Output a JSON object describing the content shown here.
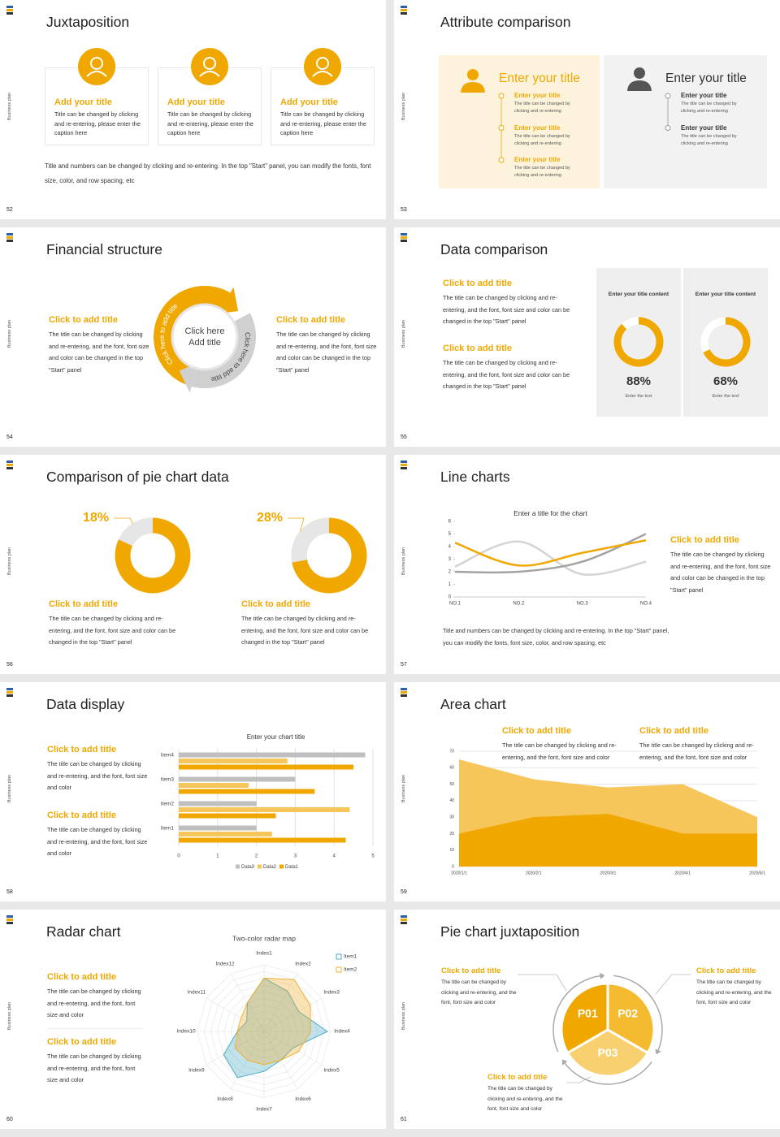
{
  "slides": [
    {
      "number": "52",
      "side_label": "Business plan",
      "title": "Juxtaposition",
      "cards": [
        {
          "title": "Add your title",
          "text": "Title can be changed by clicking and re-entering, please enter the caption here"
        },
        {
          "title": "Add your title",
          "text": "Title can be changed by clicking and re-entering, please enter the caption here"
        },
        {
          "title": "Add your title",
          "text": "Title can be changed by clicking and re-entering, please enter the caption here"
        }
      ],
      "caption": "Title and numbers can be changed by clicking and re-entering. In the top \"Start\" panel, you can modify the fonts, font size, color, and row spacing, etc"
    },
    {
      "number": "53",
      "side_label": "Business plan",
      "title": "Attribute comparison",
      "left": {
        "title": "Enter your title",
        "items": [
          {
            "title": "Enter your title",
            "text": "The title can be changed by clicking and re-entering"
          },
          {
            "title": "Enter your title",
            "text": "The title can be changed by clicking and re-entering"
          },
          {
            "title": "Enter your title",
            "text": "The title can be changed by clicking and re-entering"
          }
        ]
      },
      "right": {
        "title": "Enter your title",
        "items": [
          {
            "title": "Enter your title",
            "text": "The title can be changed by clicking and re-entering"
          },
          {
            "title": "Enter your title",
            "text": "The title can be changed by clicking and re-entering"
          }
        ]
      }
    },
    {
      "number": "54",
      "side_label": "Business plan",
      "title": "Financial structure",
      "blocks": [
        {
          "title": "Click to add title",
          "text": "The title can be changed by clicking and re-entering, and the font, font size and color can be changed in the top \"Start\" panel"
        },
        {
          "title": "Click to add title",
          "text": "The title can be changed by clicking and re-entering, and the font, font size and color can be changed in the top \"Start\" panel"
        }
      ],
      "center": [
        "Click here",
        "Add title"
      ],
      "arc_labels": [
        "Click here to add title",
        "Click here to add title"
      ]
    },
    {
      "number": "55",
      "side_label": "Business plan",
      "title": "Data comparison",
      "blocks": [
        {
          "title": "Click to add title",
          "text": "The title can be changed by clicking and re-entering, and the font, font size and color can be changed in the top \"Start\" panel"
        },
        {
          "title": "Click to add title",
          "text": "The title can be changed by clicking and re-entering, and the font, font size and color can be changed in the top \"Start\" panel"
        }
      ],
      "panels": [
        {
          "heading": "Enter your title content",
          "value": 88,
          "value_label": "88%",
          "caption": "Enter the text"
        },
        {
          "heading": "Enter your title content",
          "value": 68,
          "value_label": "68%",
          "caption": "Enter the text"
        }
      ]
    },
    {
      "number": "56",
      "side_label": "Business plan",
      "title": "Comparison of pie chart data",
      "donuts": [
        {
          "value": 18,
          "value_label": "18%"
        },
        {
          "value": 28,
          "value_label": "28%"
        }
      ],
      "blocks": [
        {
          "title": "Click to add title",
          "text": "The title can be changed by clicking and re-entering, and the font, font size and color can be changed in the top \"Start\" panel"
        },
        {
          "title": "Click to add title",
          "text": "The title can be changed by clicking and re-entering, and the font, font size and color can be changed in the top \"Start\" panel"
        }
      ]
    },
    {
      "number": "57",
      "side_label": "Business plan",
      "title": "Line charts",
      "chart": {
        "type": "line",
        "title": "Enter a title for the chart",
        "categories": [
          "NO.1",
          "NO.2",
          "NO.3",
          "NO.4"
        ],
        "ylim": [
          0,
          6
        ],
        "yticks": [
          0,
          1,
          2,
          3,
          4,
          5,
          6
        ],
        "series": [
          {
            "color": "#d4d4d4",
            "values": [
              2.4,
              4.4,
              1.8,
              2.8
            ]
          },
          {
            "color": "#a3a3a3",
            "values": [
              2,
              2,
              2.8,
              5
            ]
          },
          {
            "color": "#f0a800",
            "values": [
              4.3,
              2.5,
              3.5,
              4.5
            ]
          }
        ]
      },
      "block": {
        "title": "Click to add title",
        "text": "The title can be changed by clicking and re-entering, and the font, font size and color can be changed in the top \"Start\" panel"
      },
      "caption": "Title and numbers can be changed by clicking and re-entering. In the top \"Start\" panel, you can modify the fonts, font size, color, and row spacing, etc"
    },
    {
      "number": "58",
      "side_label": "Business plan",
      "title": "Data display",
      "chart": {
        "type": "bar",
        "orientation": "horizontal",
        "title": "Enter your chart title",
        "categories": [
          "Item1",
          "Item2",
          "Item3",
          "Item4"
        ],
        "xlim": [
          0,
          5
        ],
        "xticks": [
          0,
          1,
          2,
          3,
          4,
          5
        ],
        "grid": true,
        "series": [
          {
            "name": "Data3",
            "color": "#bfbfbf",
            "values": [
              2,
              2,
              3,
              4.8
            ]
          },
          {
            "name": "Data2",
            "color": "#f7c65a",
            "values": [
              2.4,
              4.4,
              1.8,
              2.8
            ]
          },
          {
            "name": "Data1",
            "color": "#f0a800",
            "values": [
              4.3,
              2.5,
              3.5,
              4.5
            ]
          }
        ]
      },
      "blocks": [
        {
          "title": "Click to add title",
          "text": "The title can be changed by clicking and re-entering, and the font, font size and color"
        },
        {
          "title": "Click to add title",
          "text": "The title can be changed by clicking and re-entering, and the font, font size and color"
        }
      ]
    },
    {
      "number": "59",
      "side_label": "Business plan",
      "title": "Area chart",
      "chart": {
        "type": "area",
        "categories": [
          "2020/1/1",
          "2020/2/1",
          "2020/3/1",
          "2020/4/1",
          "2020/5/1"
        ],
        "ylim": [
          0,
          70
        ],
        "yticks": [
          0,
          10,
          20,
          30,
          40,
          50,
          60,
          70
        ],
        "grid": true,
        "series": [
          {
            "color": "#f7c65a",
            "values": [
              65,
              53,
              48,
              50,
              30
            ]
          },
          {
            "color": "#f0a800",
            "values": [
              20,
              30,
              32,
              20,
              20
            ]
          }
        ]
      },
      "blocks": [
        {
          "title": "Click to add title",
          "text": "The title can be changed by clicking and re-entering, and the font, font size and color"
        },
        {
          "title": "Click to add title",
          "text": "The title can be changed by clicking and re-entering, and the font, font size and color"
        }
      ]
    },
    {
      "number": "60",
      "side_label": "Business plan",
      "title": "Radar chart",
      "chart": {
        "type": "radar",
        "title": "Two-color radar map",
        "categories": [
          "Index1",
          "Index2",
          "Index3",
          "Index4",
          "Index5",
          "Index6",
          "Index7",
          "Index8",
          "Index9",
          "Index10",
          "Index11",
          "Index12"
        ],
        "rlim": [
          0,
          10
        ],
        "series": [
          {
            "name": "Item1",
            "color": "#4bacc6",
            "values": [
              8,
              7,
              6,
              9.5,
              5,
              5,
              6,
              8,
              7,
              4,
              3,
              5
            ]
          },
          {
            "name": "Item2",
            "color": "#f0b030",
            "values": [
              8,
              9,
              8,
              7,
              6,
              5,
              5,
              5,
              5,
              4,
              4,
              5
            ]
          }
        ]
      },
      "blocks": [
        {
          "title": "Click to add title",
          "text": "The title can be changed by clicking and re-entering, and the font, font size and color"
        },
        {
          "title": "Click to add title",
          "text": "The title can be changed by clicking and re-entering, and the font, font size and color"
        }
      ]
    },
    {
      "number": "61",
      "side_label": "Business plan",
      "title": "Pie chart juxtaposition",
      "segments": [
        "P01",
        "P02",
        "P03"
      ],
      "blocks": [
        {
          "title": "Click to add title",
          "text": "The title can be changed by clicking and re-entering, and the font, font size and color"
        },
        {
          "title": "Click to add title",
          "text": "The title can be changed by clicking and re-entering, and the font, font size and color"
        },
        {
          "title": "Click to add title",
          "text": "The title can be changed by clicking and re-entering, and the font, font size and color"
        }
      ]
    }
  ]
}
